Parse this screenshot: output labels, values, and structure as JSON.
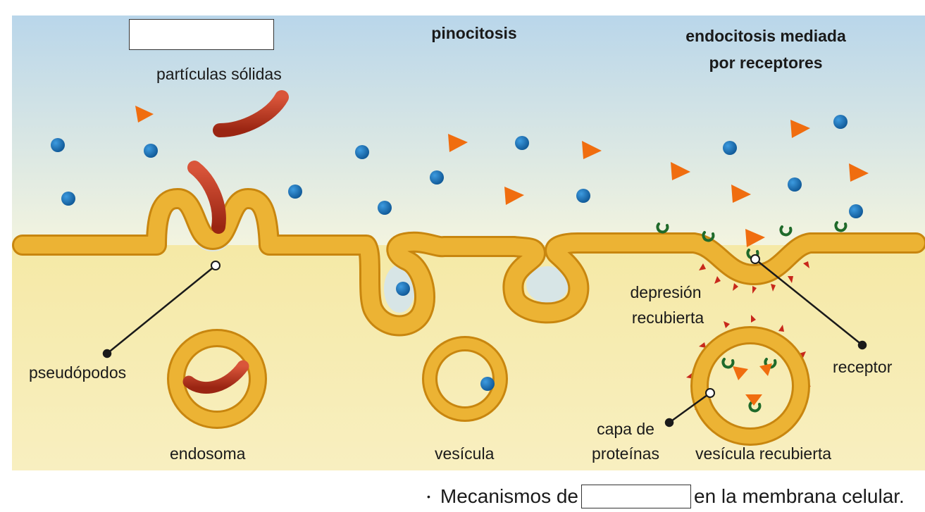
{
  "labels": {
    "pinocitosis": "pinocitosis",
    "endocitosis_line1": "endocitosis mediada",
    "endocitosis_line2": "por receptores",
    "particulas_solidas": "partículas sólidas",
    "pseudopodos": "pseudópodos",
    "endosoma": "endosoma",
    "vesicula": "vesícula",
    "depresion_line1": "depresión",
    "depresion_line2": "recubierta",
    "receptor": "receptor",
    "capa_line1": "capa de",
    "capa_line2": "proteínas",
    "vesicula_recubierta": "vesícula recubierta"
  },
  "caption": {
    "bullet": "•",
    "before": "Mecanismos de",
    "after": "en la membrana celular."
  },
  "colors": {
    "extracellular_top": "#b9d6ea",
    "extracellular_bottom": "#f3f4df",
    "cytoplasm": "#f6edb4",
    "membrane": "#ecb334",
    "membrane_edge": "#c8860f",
    "solid_particle": "#b8321b",
    "molecule": "#1b74b8",
    "ligand": "#f06d0f",
    "receptor": "#1f6a2a",
    "coat_protein": "#c8281b"
  }
}
